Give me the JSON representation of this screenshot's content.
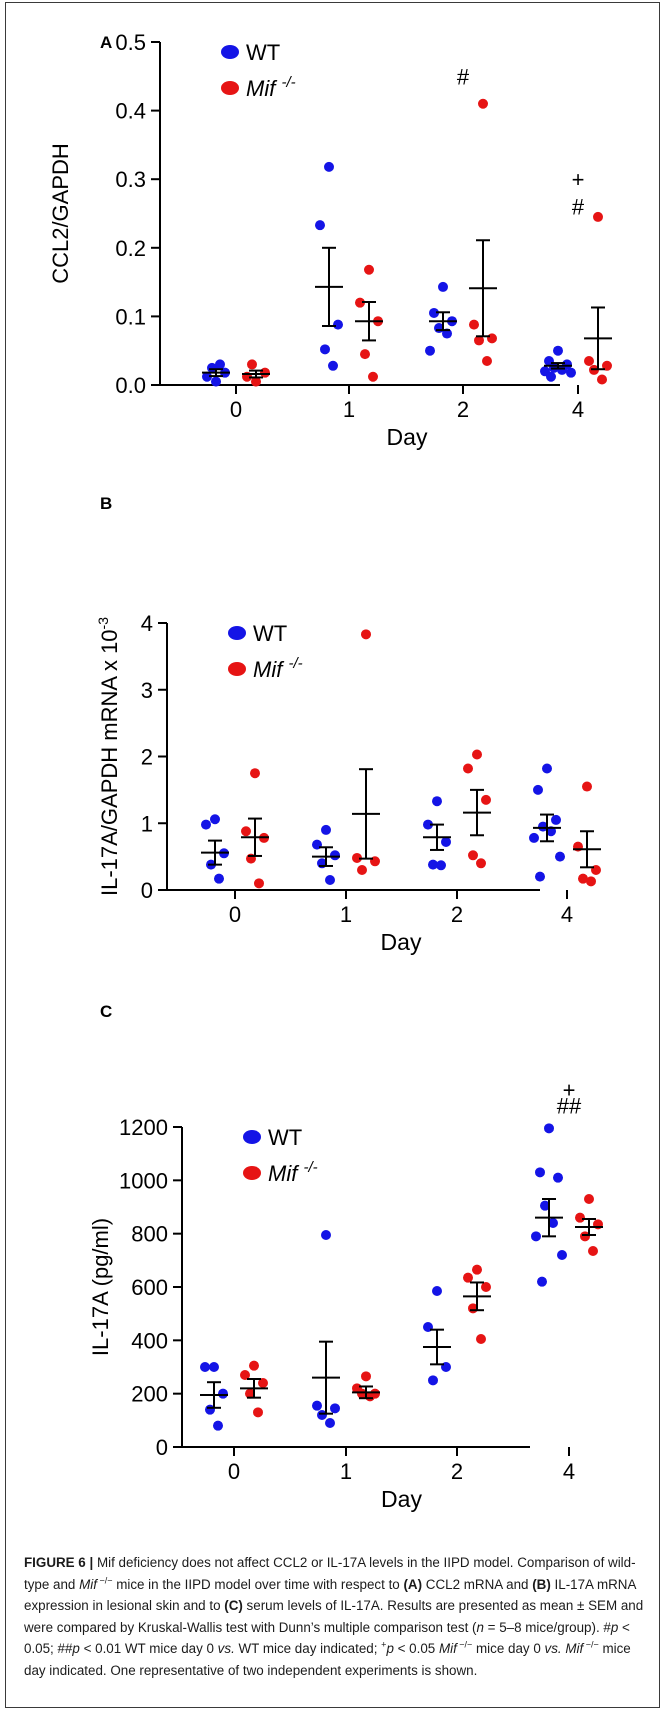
{
  "colors": {
    "wt": "#1414e6",
    "mif": "#e61414"
  },
  "chart_data": [
    {
      "type": "scatter",
      "panel": "A",
      "ylabel": "CCL2/GAPDH",
      "xlabel": "Day",
      "categories": [
        "0",
        "1",
        "2",
        "4"
      ],
      "ylim": [
        0,
        0.5
      ],
      "yticks": [
        "0.0",
        "0.1",
        "0.2",
        "0.3",
        "0.4",
        "0.5"
      ],
      "yticks_values": [
        0,
        0.1,
        0.2,
        0.3,
        0.4,
        0.5
      ],
      "legend": {
        "wt": "WT",
        "mif": "Mif",
        "mif_sup": "-/-"
      },
      "series": [
        {
          "name": "WT",
          "key": "wt",
          "points": [
            [
              0.005,
              0.012,
              0.018,
              0.025,
              0.03
            ],
            [
              0.318,
              0.233,
              0.088,
              0.052,
              0.028
            ],
            [
              0.143,
              0.105,
              0.093,
              0.083,
              0.075,
              0.05
            ],
            [
              0.05,
              0.035,
              0.03,
              0.025,
              0.022,
              0.02,
              0.018,
              0.012
            ]
          ],
          "mean": [
            0.018,
            0.143,
            0.093,
            0.028
          ],
          "sem": [
            0.005,
            0.057,
            0.013,
            0.004
          ]
        },
        {
          "name": "Mif -/-",
          "key": "mif",
          "points": [
            [
              0.005,
              0.012,
              0.018,
              0.03
            ],
            [
              0.168,
              0.12,
              0.093,
              0.045,
              0.012
            ],
            [
              0.41,
              0.088,
              0.068,
              0.065,
              0.035
            ],
            [
              0.245,
              0.035,
              0.028,
              0.022,
              0.008
            ]
          ],
          "mean": [
            0.016,
            0.093,
            0.141,
            0.068
          ],
          "sem": [
            0.005,
            0.028,
            0.07,
            0.045
          ]
        }
      ],
      "annotations": [
        {
          "text": "#",
          "category": "2",
          "value": 0.45
        },
        {
          "text": "+",
          "category": "4",
          "value": 0.3
        },
        {
          "text": "#",
          "category": "4",
          "value": 0.26
        }
      ]
    },
    {
      "type": "scatter",
      "panel": "B",
      "ylabel": "IL-17A/GAPDH mRNA x 10",
      "ylabel_sup": "-3",
      "xlabel": "Day",
      "categories": [
        "0",
        "1",
        "2",
        "4"
      ],
      "ylim": [
        0,
        4
      ],
      "yticks": [
        "0",
        "1",
        "2",
        "3",
        "4"
      ],
      "yticks_values": [
        0,
        1,
        2,
        3,
        4
      ],
      "legend": {
        "wt": "WT",
        "mif": "Mif",
        "mif_sup": "-/-"
      },
      "series": [
        {
          "name": "WT",
          "key": "wt",
          "points": [
            [
              1.06,
              0.98,
              0.55,
              0.38,
              0.17
            ],
            [
              0.9,
              0.68,
              0.52,
              0.4,
              0.15
            ],
            [
              1.33,
              0.98,
              0.72,
              0.38,
              0.37
            ],
            [
              1.82,
              1.5,
              1.05,
              0.95,
              0.88,
              0.78,
              0.5,
              0.2
            ]
          ],
          "mean": [
            0.56,
            0.5,
            0.79,
            0.93
          ],
          "sem": [
            0.18,
            0.14,
            0.19,
            0.2
          ]
        },
        {
          "name": "Mif -/-",
          "key": "mif",
          "points": [
            [
              1.75,
              0.88,
              0.78,
              0.47,
              0.1
            ],
            [
              3.83,
              0.48,
              0.43,
              0.3
            ],
            [
              2.03,
              1.82,
              1.35,
              0.52,
              0.4
            ],
            [
              1.55,
              0.65,
              0.3,
              0.17,
              0.13
            ]
          ],
          "mean": [
            0.79,
            1.14,
            1.16,
            0.61
          ],
          "sem": [
            0.28,
            0.67,
            0.34,
            0.27
          ]
        }
      ],
      "annotations": []
    },
    {
      "type": "scatter",
      "panel": "C",
      "ylabel": "IL-17A (pg/ml)",
      "xlabel": "Day",
      "categories": [
        "0",
        "1",
        "2",
        "4"
      ],
      "ylim": [
        0,
        1200
      ],
      "yticks": [
        "0",
        "200",
        "400",
        "600",
        "800",
        "1000",
        "1200"
      ],
      "yticks_values": [
        0,
        200,
        400,
        600,
        800,
        1000,
        1200
      ],
      "legend": {
        "wt": "WT",
        "mif": "Mif",
        "mif_sup": "-/-"
      },
      "series": [
        {
          "name": "WT",
          "key": "wt",
          "points": [
            [
              300,
              300,
              200,
              140,
              80
            ],
            [
              795,
              155,
              145,
              120,
              90
            ],
            [
              585,
              450,
              300,
              250
            ],
            [
              1195,
              1030,
              1010,
              905,
              840,
              790,
              720,
              620
            ]
          ],
          "mean": [
            195,
            260,
            375,
            860
          ],
          "sem": [
            48,
            135,
            65,
            70
          ]
        },
        {
          "name": "Mif -/-",
          "key": "mif",
          "points": [
            [
              305,
              270,
              240,
              200,
              130
            ],
            [
              265,
              220,
              200,
              200,
              190
            ],
            [
              665,
              635,
              600,
              520,
              405
            ],
            [
              930,
              860,
              835,
              790,
              735
            ]
          ],
          "mean": [
            220,
            205,
            565,
            825
          ],
          "sem": [
            35,
            22,
            52,
            30
          ]
        }
      ],
      "annotations": [
        {
          "text": "+",
          "category": "4",
          "value": 1340
        },
        {
          "text": "##",
          "category": "4",
          "value": 1280
        }
      ]
    }
  ],
  "caption": {
    "label": "FIGURE 6 |",
    "parts": [
      " Mif deficiency does not affect CCL2 or IL-17A levels in the IIPD model. Comparison of wild-type and ",
      "Mif",
      " −/−",
      " mice in the IIPD model over time with respect to ",
      "(A)",
      " CCL2 mRNA and ",
      "(B)",
      " IL-17A mRNA expression in lesional skin and to ",
      "(C)",
      " serum levels of IL-17A. Results are presented as mean ± SEM and were compared by Kruskal-Wallis test with Dunn’s multiple comparison test (",
      "n",
      " = 5–8 mice/group). #",
      "p",
      " < 0.05; ##",
      "p",
      " < 0.01 WT mice day 0 ",
      "vs.",
      " WT mice day indicated; ",
      "+",
      "p",
      " < 0.05 ",
      "Mif",
      " −/−",
      " mice day 0 ",
      "vs.",
      " ",
      "Mif",
      " −/−",
      " mice day indicated. One representative of two independent experiments is shown."
    ]
  }
}
